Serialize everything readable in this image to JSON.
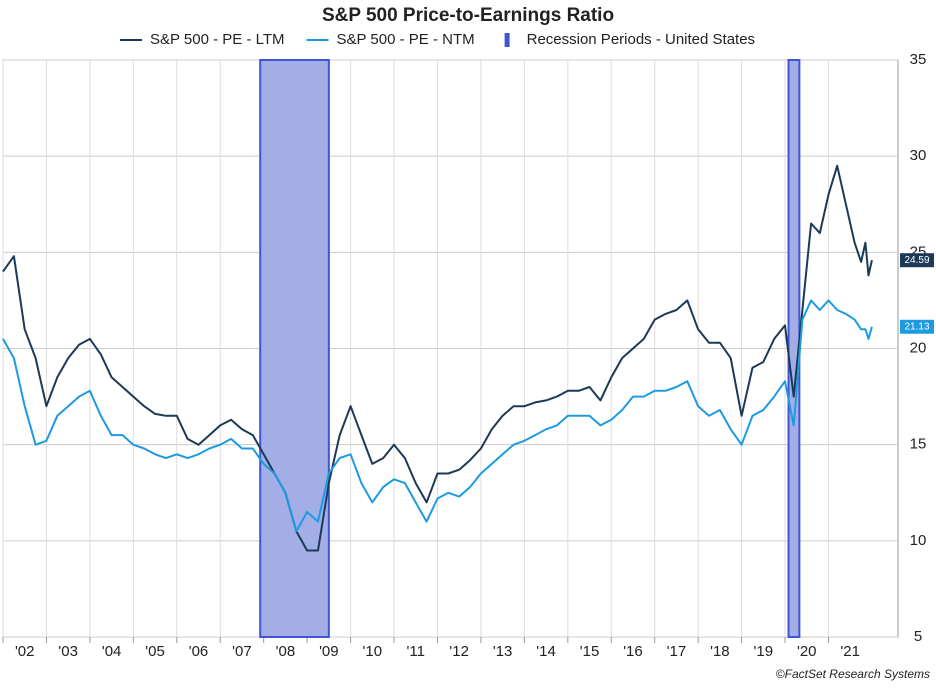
{
  "chart_data": {
    "type": "line",
    "title": "S&P 500 Price-to-Earnings Ratio",
    "x": [
      2002,
      2002.25,
      2002.5,
      2002.75,
      2003,
      2003.25,
      2003.5,
      2003.75,
      2004,
      2004.25,
      2004.5,
      2004.75,
      2005,
      2005.25,
      2005.5,
      2005.75,
      2006,
      2006.25,
      2006.5,
      2006.75,
      2007,
      2007.25,
      2007.5,
      2007.75,
      2008,
      2008.25,
      2008.5,
      2008.75,
      2009,
      2009.25,
      2009.5,
      2009.75,
      2010,
      2010.25,
      2010.5,
      2010.75,
      2011,
      2011.25,
      2011.5,
      2011.75,
      2012,
      2012.25,
      2012.5,
      2012.75,
      2013,
      2013.25,
      2013.5,
      2013.75,
      2014,
      2014.25,
      2014.5,
      2014.75,
      2015,
      2015.25,
      2015.5,
      2015.75,
      2016,
      2016.25,
      2016.5,
      2016.75,
      2017,
      2017.25,
      2017.5,
      2017.75,
      2018,
      2018.25,
      2018.5,
      2018.75,
      2019,
      2019.25,
      2019.5,
      2019.75,
      2020,
      2020.2,
      2020.4,
      2020.6,
      2020.8,
      2021,
      2021.2,
      2021.4,
      2021.6,
      2021.75,
      2021.85,
      2021.92,
      2022
    ],
    "series": [
      {
        "name": "S&P 500 - PE - LTM",
        "color": "#1c3a57",
        "values": [
          24,
          24.8,
          21,
          19.5,
          17,
          18.5,
          19.5,
          20.2,
          20.5,
          19.7,
          18.5,
          18,
          17.5,
          17,
          16.6,
          16.5,
          16.5,
          15.3,
          15,
          15.5,
          16,
          16.3,
          15.8,
          15.5,
          14.5,
          13.5,
          12.5,
          10.5,
          9.5,
          9.5,
          13,
          15.5,
          17,
          15.5,
          14,
          14.3,
          15,
          14.3,
          13,
          12,
          13.5,
          13.5,
          13.7,
          14.2,
          14.8,
          15.8,
          16.5,
          17,
          17,
          17.2,
          17.3,
          17.5,
          17.8,
          17.8,
          18,
          17.3,
          18.5,
          19.5,
          20,
          20.5,
          21.5,
          21.8,
          22,
          22.5,
          21,
          20.3,
          20.3,
          19.5,
          16.5,
          19,
          19.3,
          20.5,
          21.2,
          17.5,
          22,
          26.5,
          26,
          28,
          29.5,
          27.5,
          25.5,
          24.5,
          25.5,
          23.8,
          24.59
        ]
      },
      {
        "name": "S&P 500 - PE - NTM",
        "color": "#1e9be0",
        "values": [
          20.5,
          19.5,
          17,
          15,
          15.2,
          16.5,
          17,
          17.5,
          17.8,
          16.5,
          15.5,
          15.5,
          15,
          14.8,
          14.5,
          14.3,
          14.5,
          14.3,
          14.5,
          14.8,
          15,
          15.3,
          14.8,
          14.8,
          14,
          13.5,
          12.5,
          10.5,
          11.5,
          11,
          13.5,
          14.3,
          14.5,
          13,
          12,
          12.8,
          13.2,
          13,
          12,
          11,
          12.2,
          12.5,
          12.3,
          12.8,
          13.5,
          14,
          14.5,
          15,
          15.2,
          15.5,
          15.8,
          16,
          16.5,
          16.5,
          16.5,
          16,
          16.3,
          16.8,
          17.5,
          17.5,
          17.8,
          17.8,
          18,
          18.3,
          17,
          16.5,
          16.8,
          15.8,
          15,
          16.5,
          16.8,
          17.5,
          18.3,
          16,
          21.5,
          22.5,
          22,
          22.5,
          22,
          21.8,
          21.5,
          21,
          21,
          20.5,
          21.13
        ]
      }
    ],
    "recessions": {
      "name": "Recession Periods - United States",
      "color": "#a3aee6",
      "periods": [
        [
          2007.92,
          2009.5
        ],
        [
          2020.08,
          2020.33
        ]
      ]
    },
    "xlim": [
      2002,
      2022.6
    ],
    "xticks": [
      {
        "value": 2002,
        "label": "'02"
      },
      {
        "value": 2003,
        "label": "'03"
      },
      {
        "value": 2004,
        "label": "'04"
      },
      {
        "value": 2005,
        "label": "'05"
      },
      {
        "value": 2006,
        "label": "'06"
      },
      {
        "value": 2007,
        "label": "'07"
      },
      {
        "value": 2008,
        "label": "'08"
      },
      {
        "value": 2009,
        "label": "'09"
      },
      {
        "value": 2010,
        "label": "'10"
      },
      {
        "value": 2011,
        "label": "'11"
      },
      {
        "value": 2012,
        "label": "'12"
      },
      {
        "value": 2013,
        "label": "'13"
      },
      {
        "value": 2014,
        "label": "'14"
      },
      {
        "value": 2015,
        "label": "'15"
      },
      {
        "value": 2016,
        "label": "'16"
      },
      {
        "value": 2017,
        "label": "'17"
      },
      {
        "value": 2018,
        "label": "'18"
      },
      {
        "value": 2019,
        "label": "'19"
      },
      {
        "value": 2020,
        "label": "'20"
      },
      {
        "value": 2021,
        "label": "'21"
      }
    ],
    "ylim": [
      5,
      35
    ],
    "yticks": [
      5,
      10,
      15,
      20,
      25,
      30,
      35
    ],
    "grid": true,
    "source": "©FactSet Research Systems"
  }
}
